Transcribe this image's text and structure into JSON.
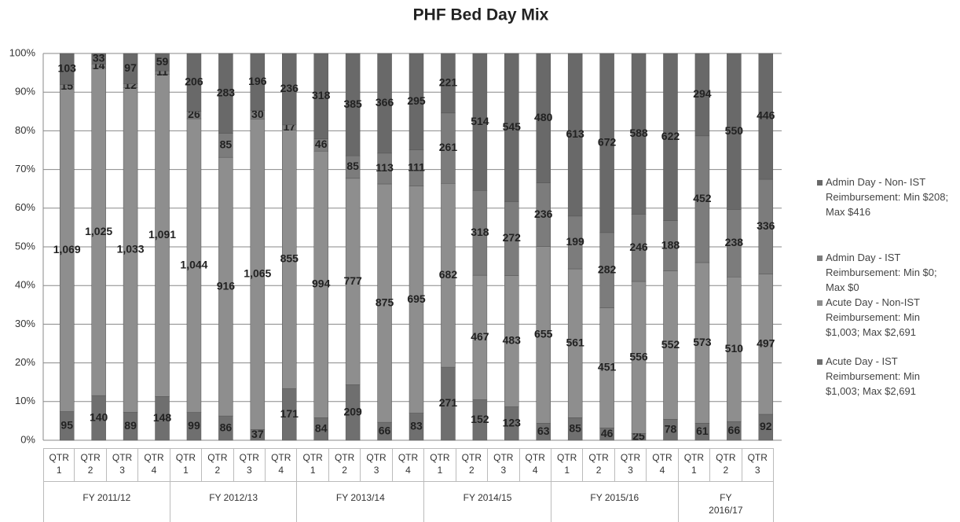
{
  "chart_data": {
    "type": "stacked_percent_bar",
    "title": "PHF Bed Day Mix",
    "groups": [
      {
        "name": "FY 2011/12",
        "categories": [
          "QTR 1",
          "QTR 2",
          "QTR 3",
          "QTR 4"
        ]
      },
      {
        "name": "FY 2012/13",
        "categories": [
          "QTR 1",
          "QTR 2",
          "QTR 3",
          "QTR 4"
        ]
      },
      {
        "name": "FY 2013/14",
        "categories": [
          "QTR 1",
          "QTR 2",
          "QTR 3",
          "QTR 4"
        ]
      },
      {
        "name": "FY 2014/15",
        "categories": [
          "QTR 1",
          "QTR 2",
          "QTR 3",
          "QTR 4"
        ]
      },
      {
        "name": "FY 2015/16",
        "categories": [
          "QTR 1",
          "QTR 2",
          "QTR 3",
          "QTR 4"
        ]
      },
      {
        "name": "FY 2016/17",
        "categories": [
          "QTR 1",
          "QTR 2",
          "QTR 3"
        ]
      }
    ],
    "series": [
      {
        "name": "Acute Day - IST Reimbursement: Min $1,003; Max $2,691",
        "color": "#6f6f6f",
        "values": [
          95,
          140,
          89,
          148,
          99,
          86,
          37,
          171,
          84,
          209,
          66,
          83,
          271,
          152,
          123,
          63,
          85,
          46,
          25,
          78,
          61,
          66,
          92
        ]
      },
      {
        "name": "Acute Day - Non-IST Reimbursement: Min $1,003; Max $2,691",
        "color": "#8e8e8e",
        "values": [
          1069,
          1025,
          1033,
          1091,
          1044,
          916,
          1065,
          855,
          994,
          777,
          875,
          695,
          682,
          467,
          483,
          655,
          561,
          451,
          556,
          552,
          573,
          510,
          497
        ],
        "value_labels": [
          "1,069",
          "1,025",
          "1,033",
          "1,091",
          "1,044",
          "916",
          "1,065",
          "855",
          "994",
          "777",
          "875",
          "695",
          "682",
          "467",
          "483",
          "655",
          "561",
          "451",
          "556",
          "552",
          "573",
          "510",
          "497"
        ]
      },
      {
        "name": "Admin Day - IST Reimbursement: Min $0; Max $0",
        "color": "#7c7c7c",
        "values": [
          15,
          14,
          12,
          11,
          26,
          85,
          30,
          17,
          46,
          85,
          113,
          111,
          261,
          318,
          272,
          236,
          199,
          282,
          246,
          188,
          452,
          238,
          336
        ]
      },
      {
        "name": "Admin Day - Non- IST Reimbursement: Min $208; Max $416",
        "color": "#696969",
        "values": [
          103,
          33,
          97,
          59,
          206,
          283,
          196,
          236,
          318,
          385,
          366,
          295,
          221,
          514,
          545,
          480,
          613,
          672,
          588,
          622,
          294,
          550,
          446
        ]
      }
    ],
    "ylim": [
      0,
      100
    ],
    "yticks": [
      {
        "value": 0,
        "label": "0%"
      },
      {
        "value": 10,
        "label": "10%"
      },
      {
        "value": 20,
        "label": "20%"
      },
      {
        "value": 30,
        "label": "30%"
      },
      {
        "value": 40,
        "label": "40%"
      },
      {
        "value": 50,
        "label": "50%"
      },
      {
        "value": 60,
        "label": "60%"
      },
      {
        "value": 70,
        "label": "70%"
      },
      {
        "value": 80,
        "label": "80%"
      },
      {
        "value": 90,
        "label": "90%"
      },
      {
        "value": 100,
        "label": "100%"
      }
    ],
    "grid": true
  }
}
